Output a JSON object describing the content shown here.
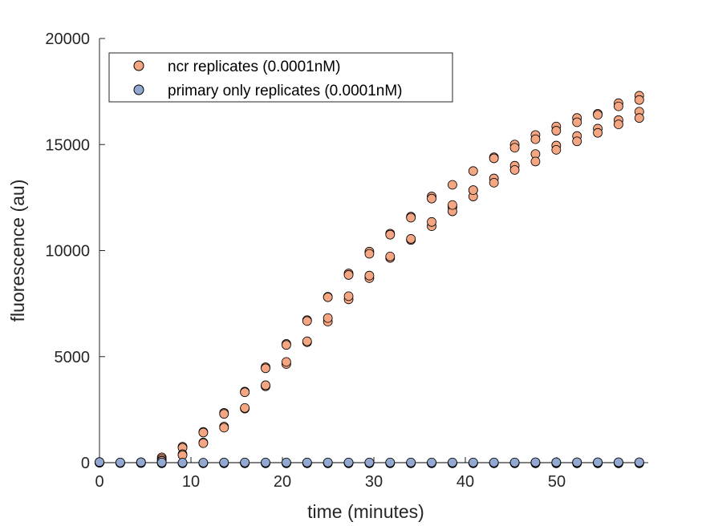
{
  "chart_data": {
    "type": "scatter",
    "title": "",
    "xlabel": "time (minutes)",
    "ylabel": "fluorescence (au)",
    "xlim": [
      0,
      60
    ],
    "ylim": [
      0,
      20000
    ],
    "xticks": [
      0,
      10,
      20,
      30,
      40,
      50
    ],
    "yticks": [
      0,
      5000,
      10000,
      15000,
      20000
    ],
    "x_tick_labels": [
      "0",
      "10",
      "20",
      "30",
      "40",
      "50"
    ],
    "y_tick_labels": [
      "0",
      "5000",
      "10000",
      "15000",
      "20000"
    ],
    "grid": false,
    "legend_position": "top-left",
    "x": [
      0,
      2.27,
      4.54,
      6.81,
      9.08,
      11.35,
      13.62,
      15.89,
      18.16,
      20.43,
      22.7,
      24.97,
      27.24,
      29.51,
      31.78,
      34.05,
      36.32,
      38.59,
      40.86,
      43.13,
      45.4,
      47.67,
      49.94,
      52.21,
      54.48,
      56.75,
      59.02
    ],
    "series": [
      {
        "name": "ncr replicates (0.0001nM)",
        "color": "#f4a582",
        "edge_color": "#000000",
        "marker": "circle",
        "replicates": [
          [
            0,
            0,
            20,
            250,
            750,
            1450,
            2350,
            3350,
            4500,
            5600,
            6720,
            7820,
            8920,
            9950,
            10800,
            11600,
            12550,
            13100,
            13750,
            14400,
            15000,
            15450,
            15850,
            16250,
            16450,
            16950,
            17300
          ],
          [
            0,
            0,
            10,
            180,
            700,
            1420,
            2300,
            3320,
            4450,
            5550,
            6680,
            7800,
            8850,
            9850,
            10750,
            11550,
            12450,
            12050,
            12850,
            13400,
            14000,
            14550,
            14950,
            15400,
            15750,
            16150,
            16550
          ],
          [
            0,
            0,
            0,
            100,
            400,
            950,
            1700,
            2550,
            3600,
            4650,
            5680,
            6650,
            7700,
            8700,
            9650,
            10500,
            11150,
            11850,
            12550,
            13200,
            13800,
            14200,
            14750,
            15150,
            15550,
            15950,
            16250
          ],
          [
            0,
            0,
            0,
            80,
            350,
            920,
            1650,
            2580,
            3650,
            4750,
            5720,
            6820,
            7850,
            8820,
            9720,
            10550,
            11350,
            12150,
            12850,
            14350,
            14850,
            15250,
            15650,
            16050,
            16400,
            16800,
            17100
          ]
        ]
      },
      {
        "name": "primary only replicates (0.0001nM)",
        "color": "#92a8d1",
        "edge_color": "#000000",
        "marker": "circle",
        "replicates": [
          [
            0,
            -20,
            -20,
            -30,
            -30,
            -30,
            -30,
            -30,
            -30,
            -30,
            -30,
            -30,
            -30,
            -30,
            -30,
            -30,
            -30,
            -30,
            -30,
            -30,
            -30,
            -30,
            -30,
            -30,
            -30,
            -30,
            -30
          ],
          [
            20,
            -10,
            0,
            -10,
            -20,
            -20,
            -10,
            -10,
            -20,
            -10,
            -10,
            -10,
            -10,
            -10,
            -10,
            -10,
            -10,
            -10,
            -10,
            -10,
            -10,
            -10,
            -10,
            -10,
            -10,
            -10,
            -10
          ],
          [
            10,
            0,
            10,
            0,
            -10,
            -10,
            0,
            0,
            0,
            0,
            0,
            0,
            0,
            0,
            0,
            0,
            0,
            0,
            0,
            0,
            0,
            10,
            10,
            10,
            10,
            10,
            10
          ],
          [
            30,
            10,
            20,
            10,
            0,
            0,
            10,
            10,
            10,
            10,
            10,
            10,
            10,
            10,
            10,
            10,
            10,
            10,
            10,
            10,
            10,
            20,
            20,
            20,
            20,
            20,
            20
          ]
        ]
      }
    ]
  }
}
